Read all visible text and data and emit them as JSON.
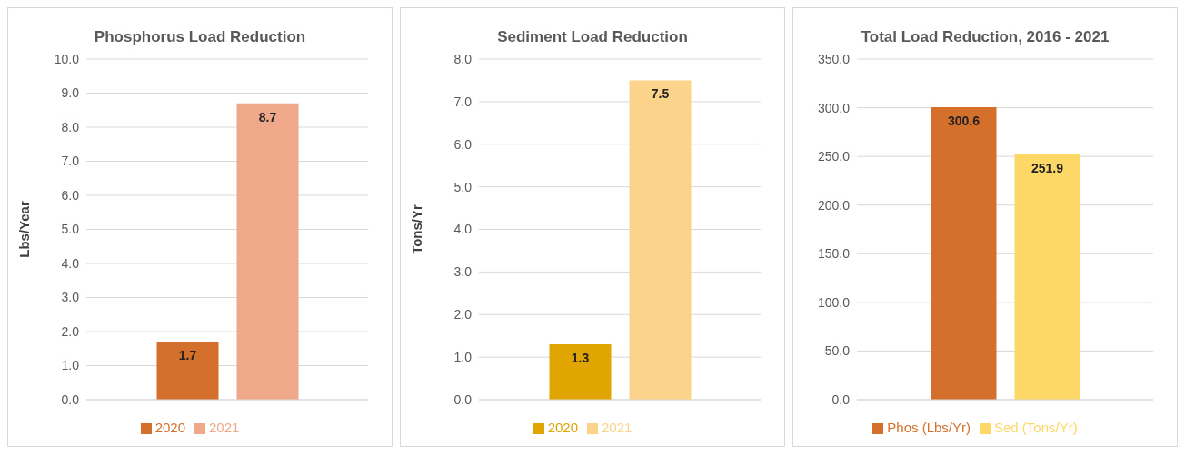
{
  "chart_data": [
    {
      "type": "bar",
      "title": "Phosphorus Load Reduction",
      "ylabel": "Lbs/Year",
      "categories": [
        null
      ],
      "series": [
        {
          "name": "2020",
          "color": "#d4702b",
          "values": [
            1.7
          ]
        },
        {
          "name": "2021",
          "color": "#f0a88a",
          "values": [
            8.7
          ]
        }
      ],
      "ylim": [
        0,
        10
      ],
      "yticks": [
        {
          "value": 0,
          "label": "0.0"
        },
        {
          "value": 1,
          "label": "1.0"
        },
        {
          "value": 2,
          "label": "2.0"
        },
        {
          "value": 3,
          "label": "3.0"
        },
        {
          "value": 4,
          "label": "4.0"
        },
        {
          "value": 5,
          "label": "5.0"
        },
        {
          "value": 6,
          "label": "6.0"
        },
        {
          "value": 7,
          "label": "7.0"
        },
        {
          "value": 8,
          "label": "8.0"
        },
        {
          "value": 9,
          "label": "9.0"
        },
        {
          "value": 10,
          "label": "10.0"
        }
      ],
      "grid": "y",
      "legend": "bottom",
      "data_labels": true
    },
    {
      "type": "bar",
      "title": "Sediment Load Reduction",
      "ylabel": "Tons/Yr",
      "categories": [
        null
      ],
      "series": [
        {
          "name": "2020",
          "color": "#e0a500",
          "values": [
            1.3
          ]
        },
        {
          "name": "2021",
          "color": "#fcd38a",
          "values": [
            7.5
          ]
        }
      ],
      "ylim": [
        0,
        8
      ],
      "yticks": [
        {
          "value": 0,
          "label": "0.0"
        },
        {
          "value": 1,
          "label": "1.0"
        },
        {
          "value": 2,
          "label": "2.0"
        },
        {
          "value": 3,
          "label": "3.0"
        },
        {
          "value": 4,
          "label": "4.0"
        },
        {
          "value": 5,
          "label": "5.0"
        },
        {
          "value": 6,
          "label": "6.0"
        },
        {
          "value": 7,
          "label": "7.0"
        },
        {
          "value": 8,
          "label": "8.0"
        }
      ],
      "grid": "y",
      "legend": "bottom",
      "data_labels": true
    },
    {
      "type": "bar",
      "title": "Total Load Reduction, 2016 - 2021",
      "categories": [
        null
      ],
      "series": [
        {
          "name": "Phos (Lbs/Yr)",
          "color": "#d4702b",
          "values": [
            300.6
          ]
        },
        {
          "name": "Sed (Tons/Yr)",
          "color": "#fdd866",
          "values": [
            251.9
          ]
        }
      ],
      "ylim": [
        0,
        350
      ],
      "yticks": [
        {
          "value": 0,
          "label": "0.0"
        },
        {
          "value": 50,
          "label": "50.0"
        },
        {
          "value": 100,
          "label": "100.0"
        },
        {
          "value": 150,
          "label": "150.0"
        },
        {
          "value": 200,
          "label": "200.0"
        },
        {
          "value": 250,
          "label": "250.0"
        },
        {
          "value": 300,
          "label": "300.0"
        },
        {
          "value": 350,
          "label": "350.0"
        }
      ],
      "grid": "y",
      "legend": "bottom",
      "data_labels": true
    }
  ]
}
